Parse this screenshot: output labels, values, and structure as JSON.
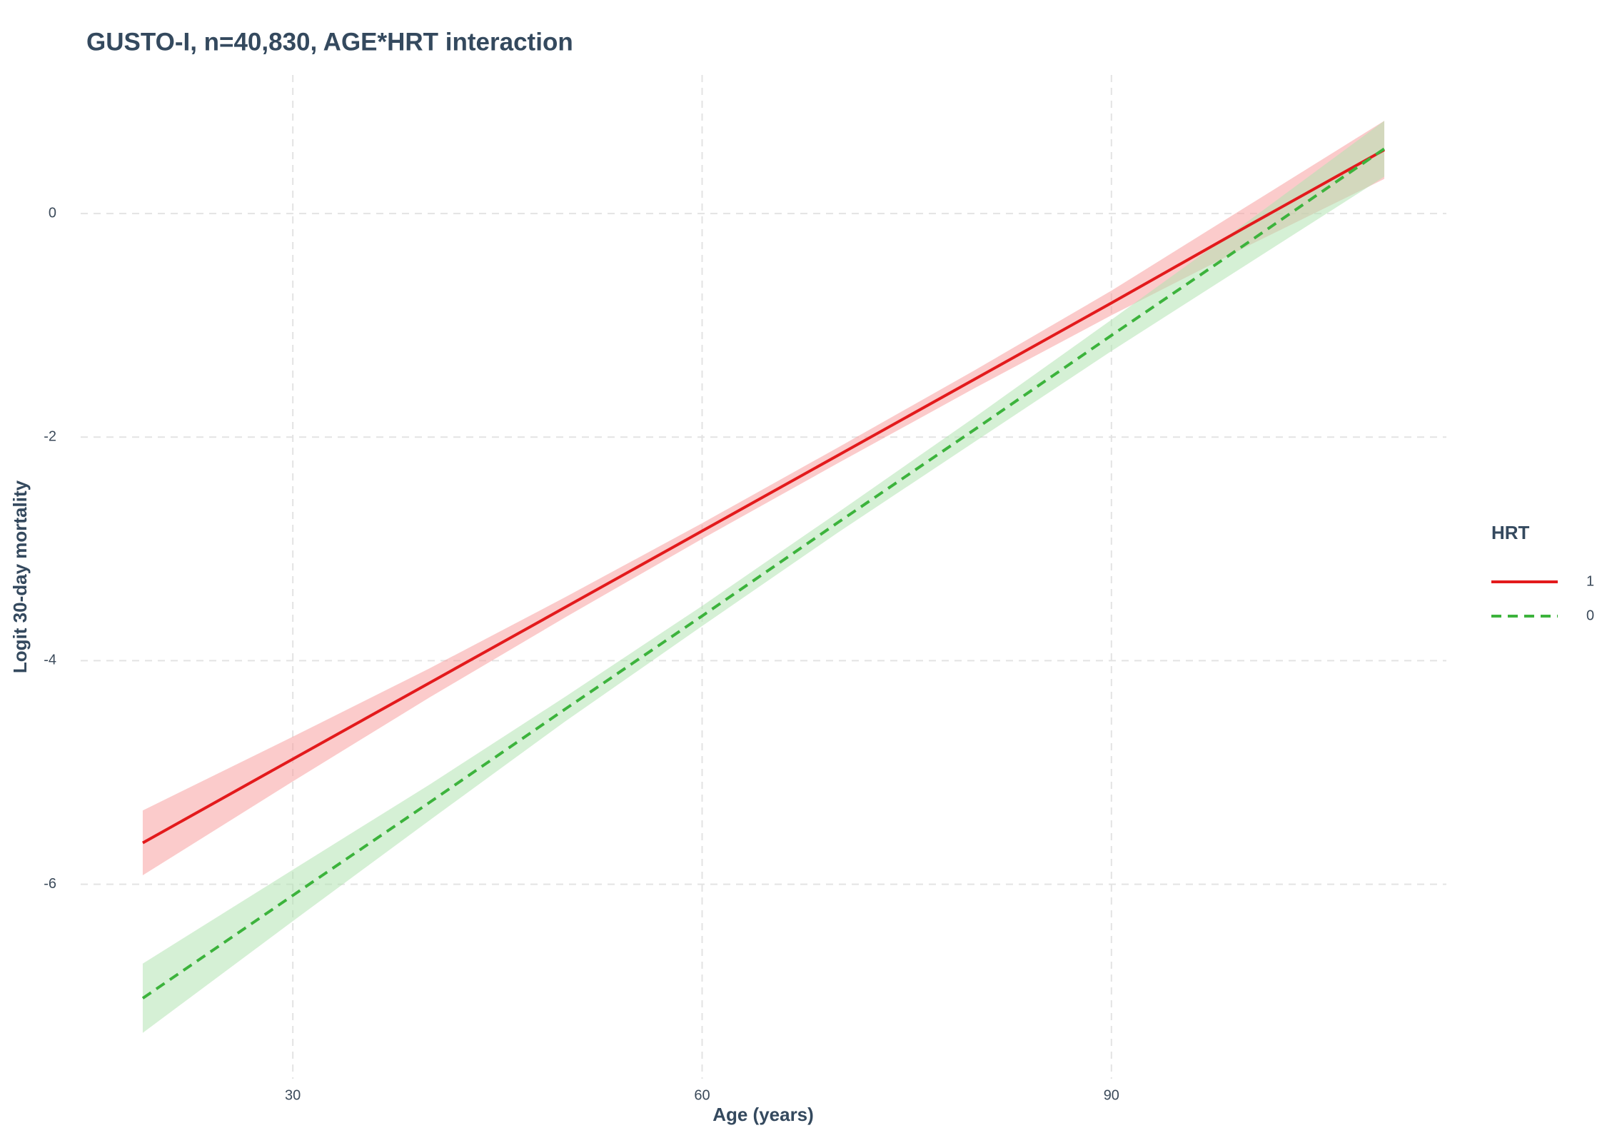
{
  "chart_data": {
    "type": "line",
    "title": "GUSTO-I, n=40,830, AGE*HRT interaction",
    "x_label": "Age (years)",
    "y_label": "Logit 30-day mortality",
    "legend_title": "HRT",
    "legend_position": "right",
    "grid": true,
    "x": [
      19,
      30,
      40,
      50,
      60,
      70,
      80,
      90,
      100,
      110
    ],
    "xlim": [
      14.45,
      114.55
    ],
    "xticks": [
      30,
      60,
      90
    ],
    "ylim": [
      -7.74,
      1.24
    ],
    "yticks": [
      -6,
      -4,
      -2,
      0
    ],
    "series": [
      {
        "name": "1",
        "color": "#e31a1c",
        "band_color": "#f7a1a1",
        "dash": "solid",
        "values": [
          -5.63,
          -4.88,
          -4.2,
          -3.52,
          -2.84,
          -2.16,
          -1.48,
          -0.8,
          -0.11,
          0.57
        ],
        "lower": [
          -5.92,
          -5.08,
          -4.33,
          -3.61,
          -2.91,
          -2.23,
          -1.56,
          -0.91,
          -0.29,
          0.31
        ],
        "upper": [
          -5.34,
          -4.68,
          -4.07,
          -3.43,
          -2.77,
          -2.09,
          -1.4,
          -0.69,
          0.07,
          0.83
        ]
      },
      {
        "name": "0",
        "color": "#3cb33c",
        "band_color": "#b3e3b3",
        "dash": "dashed",
        "values": [
          -7.02,
          -6.1,
          -5.27,
          -4.43,
          -3.6,
          -2.76,
          -1.93,
          -1.09,
          -0.26,
          0.58
        ],
        "lower": [
          -7.33,
          -6.33,
          -5.43,
          -4.54,
          -3.69,
          -2.85,
          -2.04,
          -1.23,
          -0.45,
          0.33
        ],
        "upper": [
          -6.71,
          -5.87,
          -5.11,
          -4.32,
          -3.51,
          -2.67,
          -1.82,
          -0.95,
          -0.07,
          0.83
        ]
      }
    ]
  }
}
